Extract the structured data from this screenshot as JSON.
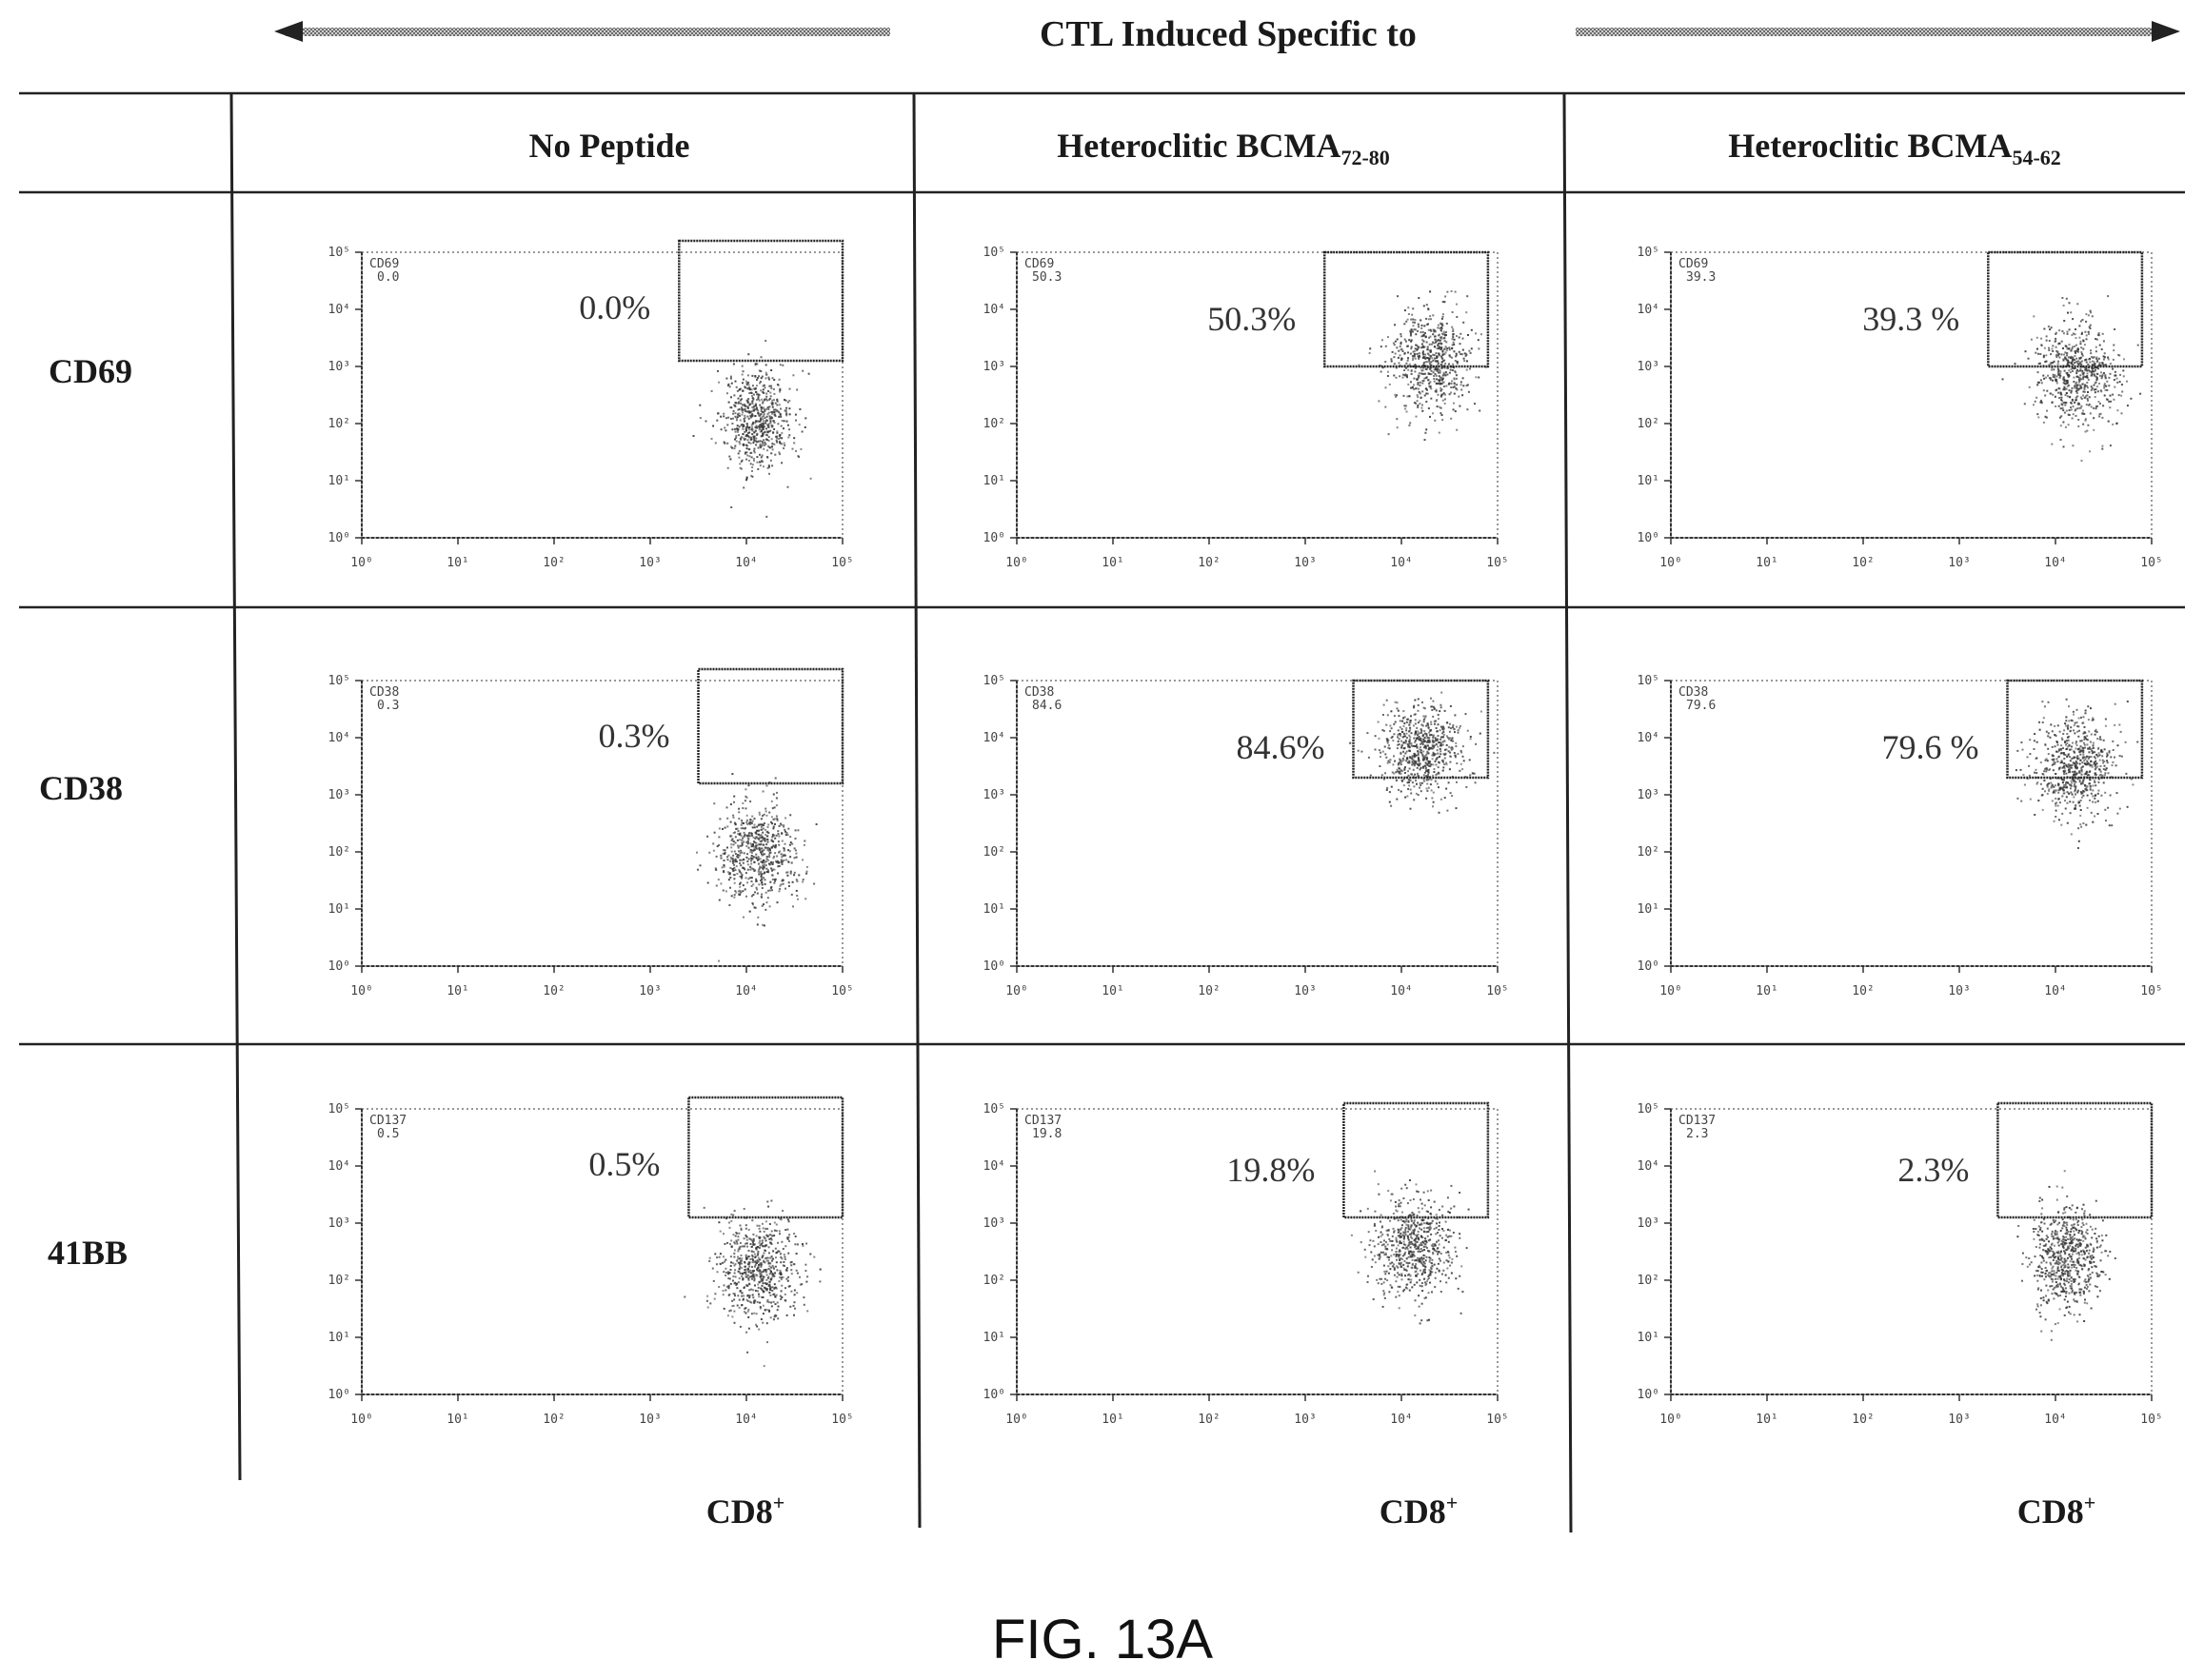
{
  "figure": {
    "header": "CTL Induced Specific to",
    "caption": "FIG. 13A",
    "x_axis_label": "CD8",
    "x_axis_label_sup": "+",
    "columns": [
      {
        "base": "No Peptide",
        "sub": ""
      },
      {
        "base": "Heteroclitic BCMA",
        "sub": "72-80"
      },
      {
        "base": "Heteroclitic BCMA",
        "sub": "54-62"
      }
    ],
    "rows": [
      "CD69",
      "CD38",
      "41BB"
    ],
    "tick_labels": [
      "10⁰",
      "10¹",
      "10²",
      "10³",
      "10⁴",
      "10⁵"
    ]
  },
  "chart_data": {
    "type": "scatter",
    "x_axis_scale": "log",
    "y_axis_scale": "log",
    "xlim": [
      1,
      100000
    ],
    "ylim": [
      1,
      100000
    ],
    "panels": [
      {
        "row": "CD69",
        "column": "No Peptide",
        "gate_label": "CD69",
        "gate_value": "0.0",
        "percent": "0.0%",
        "cloud": {
          "x_center_log": 4.1,
          "y_center_log": 2.1,
          "spread_x": 0.3,
          "spread_y": 0.6
        },
        "gate": {
          "x_log": [
            3.3,
            5.0
          ],
          "y_log": [
            3.1,
            5.2
          ]
        }
      },
      {
        "row": "CD69",
        "column": "Heteroclitic BCMA72-80",
        "gate_label": "CD69",
        "gate_value": "50.3",
        "percent": "50.3%",
        "cloud": {
          "x_center_log": 4.3,
          "y_center_log": 3.1,
          "spread_x": 0.35,
          "spread_y": 0.6
        },
        "gate": {
          "x_log": [
            3.2,
            4.9
          ],
          "y_log": [
            3.0,
            5.0
          ]
        }
      },
      {
        "row": "CD69",
        "column": "Heteroclitic BCMA54-62",
        "gate_label": "CD69",
        "gate_value": "39.3",
        "percent": "39.3 %",
        "cloud": {
          "x_center_log": 4.2,
          "y_center_log": 2.9,
          "spread_x": 0.35,
          "spread_y": 0.6
        },
        "gate": {
          "x_log": [
            3.3,
            4.9
          ],
          "y_log": [
            3.0,
            5.0
          ]
        }
      },
      {
        "row": "CD38",
        "column": "No Peptide",
        "gate_label": "CD38",
        "gate_value": "0.3",
        "percent": "0.3%",
        "cloud": {
          "x_center_log": 4.1,
          "y_center_log": 2.0,
          "spread_x": 0.35,
          "spread_y": 0.6
        },
        "gate": {
          "x_log": [
            3.5,
            5.0
          ],
          "y_log": [
            3.2,
            5.2
          ]
        }
      },
      {
        "row": "CD38",
        "column": "Heteroclitic BCMA72-80",
        "gate_label": "CD38",
        "gate_value": "84.6",
        "percent": "84.6%",
        "cloud": {
          "x_center_log": 4.2,
          "y_center_log": 3.8,
          "spread_x": 0.35,
          "spread_y": 0.55
        },
        "gate": {
          "x_log": [
            3.5,
            4.9
          ],
          "y_log": [
            3.3,
            5.0
          ]
        }
      },
      {
        "row": "CD38",
        "column": "Heteroclitic BCMA54-62",
        "gate_label": "CD38",
        "gate_value": "79.6",
        "percent": "79.6 %",
        "cloud": {
          "x_center_log": 4.2,
          "y_center_log": 3.5,
          "spread_x": 0.35,
          "spread_y": 0.6
        },
        "gate": {
          "x_log": [
            3.5,
            4.9
          ],
          "y_log": [
            3.3,
            5.0
          ]
        }
      },
      {
        "row": "41BB",
        "column": "No Peptide",
        "gate_label": "CD137",
        "gate_value": "0.5",
        "percent": "0.5%",
        "cloud": {
          "x_center_log": 4.1,
          "y_center_log": 2.2,
          "spread_x": 0.35,
          "spread_y": 0.6
        },
        "gate": {
          "x_log": [
            3.4,
            5.0
          ],
          "y_log": [
            3.1,
            5.2
          ]
        }
      },
      {
        "row": "41BB",
        "column": "Heteroclitic BCMA72-80",
        "gate_label": "CD137",
        "gate_value": "19.8",
        "percent": "19.8%",
        "cloud": {
          "x_center_log": 4.1,
          "y_center_log": 2.6,
          "spread_x": 0.35,
          "spread_y": 0.6
        },
        "gate": {
          "x_log": [
            3.4,
            4.9
          ],
          "y_log": [
            3.1,
            5.1
          ]
        }
      },
      {
        "row": "41BB",
        "column": "Heteroclitic BCMA54-62",
        "gate_label": "CD137",
        "gate_value": "2.3",
        "percent": "2.3%",
        "cloud": {
          "x_center_log": 4.1,
          "y_center_log": 2.4,
          "spread_x": 0.3,
          "spread_y": 0.6
        },
        "gate": {
          "x_log": [
            3.4,
            5.0
          ],
          "y_log": [
            3.1,
            5.1
          ]
        }
      }
    ]
  }
}
